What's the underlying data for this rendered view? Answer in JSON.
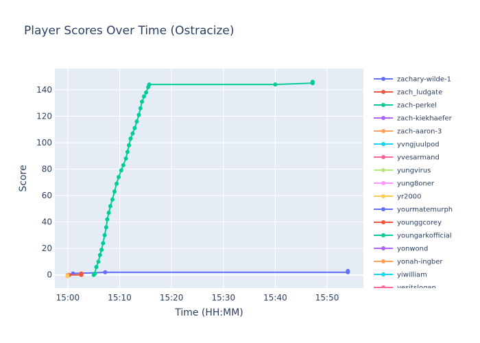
{
  "chart_data": {
    "type": "line",
    "title": "Player Scores Over Time (Ostracize)",
    "xlabel": "Time (HH:MM)",
    "ylabel": "Score",
    "x_ticks": [
      "15:00",
      "15:10",
      "15:20",
      "15:30",
      "15:40",
      "15:50"
    ],
    "x_tick_minutes": [
      0,
      10,
      20,
      30,
      40,
      50
    ],
    "xlim_minutes": [
      -2.5,
      57
    ],
    "y_ticks": [
      0,
      20,
      40,
      60,
      80,
      100,
      120,
      140
    ],
    "ylim": [
      -10,
      156
    ],
    "grid": true,
    "legend_position": "right",
    "series": [
      {
        "name": "zachary-wilde-1",
        "color": "#636efa",
        "points": [
          [
            0.3,
            0
          ],
          [
            1.0,
            1
          ],
          [
            7.2,
            2
          ],
          [
            54.0,
            2
          ],
          [
            54.0,
            3
          ]
        ]
      },
      {
        "name": "zach_ludgate",
        "color": "#EF553B",
        "points": [
          [
            0.2,
            0
          ],
          [
            2.6,
            0
          ],
          [
            2.6,
            1
          ]
        ]
      },
      {
        "name": "zach-perkel",
        "color": "#00cc96",
        "points": [
          [
            5.0,
            0
          ],
          [
            5.2,
            1
          ],
          [
            5.5,
            6
          ],
          [
            5.9,
            10
          ],
          [
            6.2,
            15
          ],
          [
            6.5,
            19
          ],
          [
            6.8,
            24
          ],
          [
            7.1,
            30
          ],
          [
            7.4,
            36
          ],
          [
            7.6,
            42
          ],
          [
            7.9,
            47
          ],
          [
            8.2,
            52
          ],
          [
            8.6,
            57
          ],
          [
            9.0,
            63
          ],
          [
            9.4,
            69
          ],
          [
            9.8,
            74
          ],
          [
            10.3,
            79
          ],
          [
            10.7,
            83
          ],
          [
            11.2,
            88
          ],
          [
            11.5,
            93
          ],
          [
            11.8,
            98
          ],
          [
            12.1,
            103
          ],
          [
            12.5,
            107
          ],
          [
            12.9,
            111
          ],
          [
            13.3,
            116
          ],
          [
            13.7,
            121
          ],
          [
            14.0,
            126
          ],
          [
            14.3,
            131
          ],
          [
            14.7,
            135
          ],
          [
            15.1,
            138
          ],
          [
            15.5,
            142
          ],
          [
            15.7,
            144
          ],
          [
            40.0,
            144
          ],
          [
            47.2,
            145
          ],
          [
            47.2,
            146
          ]
        ]
      },
      {
        "name": "zach-kiekhaefer",
        "color": "#ab63fa",
        "points": []
      },
      {
        "name": "zach-aaron-3",
        "color": "#FFA15A",
        "points": [
          [
            0.0,
            0
          ]
        ]
      },
      {
        "name": "yvngjuulpod",
        "color": "#19d3f3",
        "points": []
      },
      {
        "name": "yvesarmand",
        "color": "#FF6692",
        "points": []
      },
      {
        "name": "yungvirus",
        "color": "#B6E880",
        "points": []
      },
      {
        "name": "yung8oner",
        "color": "#FF97FF",
        "points": []
      },
      {
        "name": "yr2000",
        "color": "#FECB52",
        "points": [
          [
            -0.1,
            -1
          ]
        ]
      },
      {
        "name": "yourmatemurph",
        "color": "#636efa",
        "points": []
      },
      {
        "name": "younggcorey",
        "color": "#EF553B",
        "points": []
      },
      {
        "name": "youngarkofficial",
        "color": "#00cc96",
        "points": []
      },
      {
        "name": "yonwond",
        "color": "#ab63fa",
        "points": []
      },
      {
        "name": "yonah-ingber",
        "color": "#FFA15A",
        "points": []
      },
      {
        "name": "yiwilliam",
        "color": "#19d3f3",
        "points": []
      },
      {
        "name": "yesitslogan",
        "color": "#FF6692",
        "points": []
      }
    ]
  }
}
